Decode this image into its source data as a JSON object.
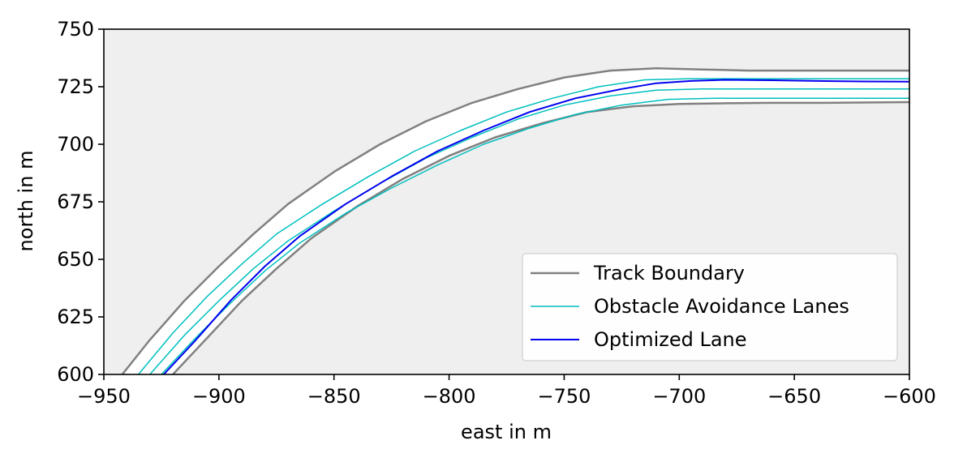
{
  "chart_data": {
    "type": "line",
    "xlabel": "east in m",
    "ylabel": "north in m",
    "xlim": [
      -950,
      -600
    ],
    "ylim": [
      600,
      750
    ],
    "xticks": [
      -950,
      -900,
      -850,
      -800,
      -750,
      -700,
      -650,
      -600
    ],
    "yticks": [
      600,
      625,
      650,
      675,
      700,
      725,
      750
    ],
    "xtick_labels": [
      "−950",
      "−900",
      "−850",
      "−800",
      "−750",
      "−700",
      "−650",
      "−600"
    ],
    "ytick_labels": [
      "600",
      "625",
      "650",
      "675",
      "700",
      "725",
      "750"
    ],
    "grid": false,
    "legend_position": "lower-right",
    "colors": {
      "plot_background": "#efefef",
      "track_corridor": "#ffffff",
      "track_boundary": "#808080",
      "obstacle_lanes": "#00bfbf",
      "optimized_lane": "#0000ee"
    },
    "legend": [
      {
        "label": "Track Boundary",
        "color": "#808080"
      },
      {
        "label": "Obstacle Avoidance Lanes",
        "color": "#00bfbf"
      },
      {
        "label": "Optimized Lane",
        "color": "#0000ee"
      }
    ],
    "series": [
      {
        "name": "Track Boundary",
        "role": "outer",
        "x": [
          -942,
          -930,
          -915,
          -900,
          -885,
          -870,
          -850,
          -830,
          -810,
          -790,
          -770,
          -750,
          -730,
          -710,
          -690,
          -670,
          -640,
          -600
        ],
        "y": [
          600,
          615,
          632,
          647,
          661,
          674,
          688,
          700,
          710,
          718,
          724,
          729,
          732,
          733,
          732.5,
          732,
          732,
          732
        ]
      },
      {
        "name": "Obstacle Avoidance Lanes",
        "x": [
          -935,
          -920,
          -905,
          -890,
          -875,
          -855,
          -835,
          -815,
          -795,
          -775,
          -755,
          -735,
          -715,
          -695,
          -670,
          -640,
          -600
        ],
        "y": [
          600,
          618,
          634,
          648,
          661,
          674,
          686,
          697,
          706,
          714,
          720,
          725,
          728,
          728.5,
          728.5,
          728.5,
          728.5
        ]
      },
      {
        "name": "Obstacle Avoidance Lanes",
        "x": [
          -930,
          -915,
          -900,
          -885,
          -870,
          -850,
          -830,
          -810,
          -790,
          -770,
          -750,
          -730,
          -710,
          -690,
          -670,
          -640,
          -600
        ],
        "y": [
          600,
          617,
          632,
          646,
          658,
          671,
          683,
          694,
          703,
          711,
          717,
          721,
          723.5,
          724,
          724,
          724,
          724
        ]
      },
      {
        "name": "Obstacle Avoidance Lanes",
        "x": [
          -925,
          -910,
          -895,
          -880,
          -865,
          -845,
          -825,
          -805,
          -785,
          -765,
          -745,
          -725,
          -705,
          -685,
          -665,
          -640,
          -600
        ],
        "y": [
          600,
          616,
          631,
          645,
          657,
          670,
          681,
          691,
          700,
          707,
          713,
          717,
          719.5,
          720,
          720,
          720,
          720
        ]
      },
      {
        "name": "Optimized Lane",
        "x": [
          -924,
          -910,
          -895,
          -880,
          -865,
          -845,
          -825,
          -805,
          -785,
          -765,
          -745,
          -725,
          -710,
          -695,
          -680,
          -660,
          -640,
          -620,
          -600
        ],
        "y": [
          600,
          615,
          632,
          647,
          660,
          674,
          686,
          697,
          706,
          714,
          720,
          724,
          726.5,
          727.5,
          728,
          727.8,
          727.5,
          727.3,
          727.2
        ]
      },
      {
        "name": "Track Boundary",
        "role": "inner",
        "x": [
          -920,
          -905,
          -890,
          -875,
          -860,
          -840,
          -820,
          -800,
          -780,
          -760,
          -740,
          -720,
          -700,
          -680,
          -660,
          -640,
          -600
        ],
        "y": [
          600,
          616,
          632,
          646,
          659,
          673,
          685,
          695,
          703,
          709,
          714,
          716.5,
          717.5,
          717.8,
          718,
          718,
          718.3
        ]
      }
    ]
  }
}
